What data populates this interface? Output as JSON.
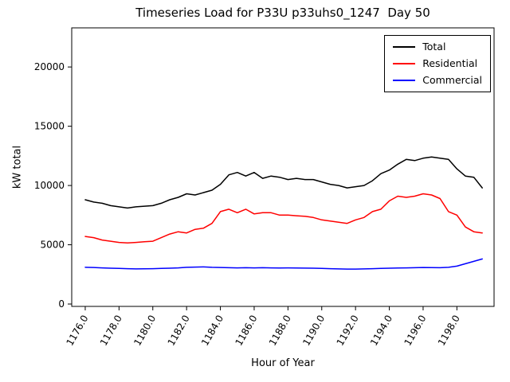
{
  "chart_data": {
    "type": "line",
    "title": "Timeseries Load for P33U p33uhs0_1247  Day 50",
    "xlabel": "Hour of Year",
    "ylabel": "kW total",
    "grid": false,
    "legend_position": "upper right",
    "xlim": [
      1175.2,
      1200.2
    ],
    "ylim": [
      -200,
      23300
    ],
    "xticks": [
      1176,
      1178,
      1180,
      1182,
      1184,
      1186,
      1188,
      1190,
      1192,
      1194,
      1196,
      1198
    ],
    "xtick_labels": [
      "1176.0",
      "1178.0",
      "1180.0",
      "1182.0",
      "1184.0",
      "1186.0",
      "1188.0",
      "1190.0",
      "1192.0",
      "1194.0",
      "1196.0",
      "1198.0"
    ],
    "yticks": [
      0,
      5000,
      10000,
      15000,
      20000
    ],
    "ytick_labels": [
      "0",
      "5000",
      "10000",
      "15000",
      "20000"
    ],
    "x": [
      1176.0,
      1176.5,
      1177.0,
      1177.5,
      1178.0,
      1178.5,
      1179.0,
      1179.5,
      1180.0,
      1180.5,
      1181.0,
      1181.5,
      1182.0,
      1182.5,
      1183.0,
      1183.5,
      1184.0,
      1184.5,
      1185.0,
      1185.5,
      1186.0,
      1186.5,
      1187.0,
      1187.5,
      1188.0,
      1188.5,
      1189.0,
      1189.5,
      1190.0,
      1190.5,
      1191.0,
      1191.5,
      1192.0,
      1192.5,
      1193.0,
      1193.5,
      1194.0,
      1194.5,
      1195.0,
      1195.5,
      1196.0,
      1196.5,
      1197.0,
      1197.5,
      1198.0,
      1198.5,
      1199.0,
      1199.5
    ],
    "series": [
      {
        "name": "Total",
        "color": "#000000",
        "values": [
          8800,
          8600,
          8500,
          8300,
          8200,
          8100,
          8200,
          8250,
          8300,
          8500,
          8800,
          9000,
          9300,
          9200,
          9400,
          9600,
          10100,
          10900,
          11100,
          10800,
          11100,
          10600,
          10800,
          10700,
          10500,
          10600,
          10500,
          10500,
          10300,
          10100,
          10000,
          9800,
          9900,
          10000,
          10400,
          11000,
          11300,
          11800,
          12200,
          12100,
          12300,
          12400,
          12300,
          12200,
          11400,
          10800,
          10700,
          9800
        ]
      },
      {
        "name": "Residential",
        "color": "#ff0000",
        "values": [
          5700,
          5600,
          5400,
          5300,
          5200,
          5150,
          5200,
          5250,
          5300,
          5600,
          5900,
          6100,
          6000,
          6300,
          6400,
          6800,
          7800,
          8000,
          7700,
          8000,
          7600,
          7700,
          7700,
          7500,
          7500,
          7450,
          7400,
          7300,
          7100,
          7000,
          6900,
          6800,
          7100,
          7300,
          7800,
          8000,
          8700,
          9100,
          9000,
          9100,
          9300,
          9200,
          8900,
          7800,
          7500,
          6500,
          6100,
          6000
        ]
      },
      {
        "name": "Commercial",
        "color": "#0000ff",
        "values": [
          3100,
          3080,
          3050,
          3020,
          3000,
          2980,
          2960,
          2970,
          2980,
          3000,
          3020,
          3050,
          3100,
          3120,
          3130,
          3100,
          3080,
          3060,
          3050,
          3060,
          3050,
          3060,
          3050,
          3040,
          3050,
          3040,
          3030,
          3020,
          3000,
          2980,
          2960,
          2950,
          2950,
          2960,
          2980,
          3000,
          3020,
          3040,
          3050,
          3060,
          3080,
          3070,
          3060,
          3100,
          3200,
          3400,
          3600,
          3800
        ]
      }
    ]
  }
}
